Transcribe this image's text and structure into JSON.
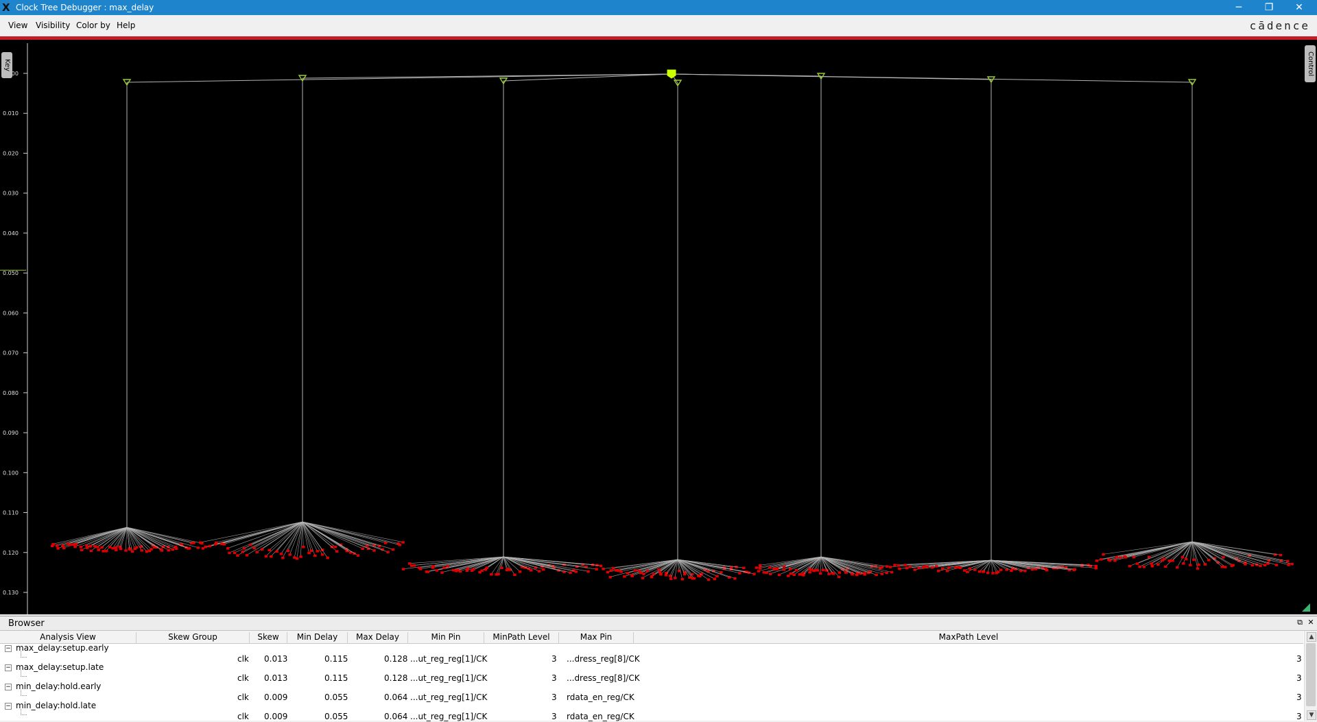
{
  "window": {
    "title": "Clock Tree Debugger : max_delay",
    "minimize": "─",
    "restore": "❐",
    "close": "✕"
  },
  "menu": {
    "items": [
      "View",
      "Visibility",
      "Color by",
      "Help"
    ],
    "brand": "cādence"
  },
  "canvas": {
    "key_tab": "Key",
    "control_tab": "Control",
    "axis_ticks": [
      "0.000",
      "0.010",
      "0.020",
      "0.030",
      "0.040",
      "0.050",
      "0.060",
      "0.070",
      "0.080",
      "0.090",
      "0.100",
      "0.110",
      "0.120",
      "0.130"
    ],
    "colors": {
      "background": "#000000",
      "wire": "#b4b4b4",
      "buffer": "#9acd32",
      "sink": "#e00000",
      "root": "#ccff00"
    }
  },
  "browser": {
    "title": "Browser",
    "float_icon": "⧉",
    "close_icon": "✕",
    "columns": [
      "Analysis View",
      "Skew Group",
      "Skew",
      "Min Delay",
      "Max Delay",
      "Min Pin",
      "MinPath Level",
      "Max Pin",
      "MaxPath Level"
    ],
    "rows": [
      {
        "view": "max_delay:setup.early",
        "skew_group": "clk",
        "skew": "0.013",
        "min_delay": "0.115",
        "max_delay": "0.128",
        "min_pin": "...ut_reg_reg[1]/CK",
        "min_level": "3",
        "max_pin": "...dress_reg[8]/CK",
        "max_level": "3"
      },
      {
        "view": "max_delay:setup.late",
        "skew_group": "clk",
        "skew": "0.013",
        "min_delay": "0.115",
        "max_delay": "0.128",
        "min_pin": "...ut_reg_reg[1]/CK",
        "min_level": "3",
        "max_pin": "...dress_reg[8]/CK",
        "max_level": "3"
      },
      {
        "view": "min_delay:hold.early",
        "skew_group": "clk",
        "skew": "0.009",
        "min_delay": "0.055",
        "max_delay": "0.064",
        "min_pin": "...ut_reg_reg[1]/CK",
        "min_level": "3",
        "max_pin": "rdata_en_reg/CK",
        "max_level": "3"
      },
      {
        "view": "min_delay:hold.late",
        "skew_group": "clk",
        "skew": "0.009",
        "min_delay": "0.055",
        "max_delay": "0.064",
        "min_pin": "...ut_reg_reg[1]/CK",
        "min_level": "3",
        "max_pin": "rdata_en_reg/CK",
        "max_level": "3"
      }
    ]
  }
}
